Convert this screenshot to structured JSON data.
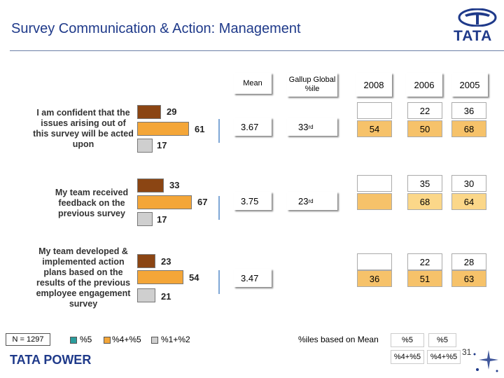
{
  "header": {
    "title": "Survey Communication & Action: Management",
    "logo_text": "TATA"
  },
  "columns": {
    "mean": "Mean",
    "gallup": "Gallup Global %ile",
    "y2008": "2008",
    "y2006": "2006",
    "y2005": "2005"
  },
  "items": [
    {
      "statement": "I am confident that the issues arising out of this survey will be acted upon",
      "top5": "29",
      "top45": "61",
      "bottom12": "17",
      "mean": "3.67",
      "gallup_rank": "33",
      "gallup_suffix": "rd",
      "y2008_top5": "",
      "y2008_top45": "54",
      "y2006_top5": "22",
      "y2006_top45": "50",
      "y2005_top5": "36",
      "y2005_top45": "68"
    },
    {
      "statement": "My team received feedback on the previous survey",
      "top5": "33",
      "top45": "67",
      "bottom12": "17",
      "mean": "3.75",
      "gallup_rank": "23",
      "gallup_suffix": "rd",
      "y2008_top5": "",
      "y2008_top45": "",
      "y2006_top5": "35",
      "y2006_top45": "68",
      "y2005_top5": "30",
      "y2005_top45": "64"
    },
    {
      "statement": "My team developed & implemented action plans based on the results of the previous employee engagement survey",
      "top5": "23",
      "top45": "54",
      "bottom12": "21",
      "mean": "3.47",
      "gallup_rank": "",
      "gallup_suffix": "",
      "y2008_top5": "",
      "y2008_top45": "36",
      "y2006_top5": "22",
      "y2006_top45": "51",
      "y2005_top5": "28",
      "y2005_top45": "63"
    }
  ],
  "legend": {
    "n": "N = 1297",
    "l5": "%5",
    "l45": "%4+%5",
    "l12": "%1+%2",
    "note": "%iles based on Mean"
  },
  "footer": {
    "brand": "TATA POWER",
    "lab5_a": "%5",
    "lab5_b": "%5",
    "lab45_a": "%4+%5",
    "lab45_b": "%4+%5",
    "page": "31",
    "colors": {
      "top5": "#8b4513",
      "top45": "#f4a638",
      "bottom12": "#cfcfcf",
      "brand": "#1f3a8a"
    }
  }
}
